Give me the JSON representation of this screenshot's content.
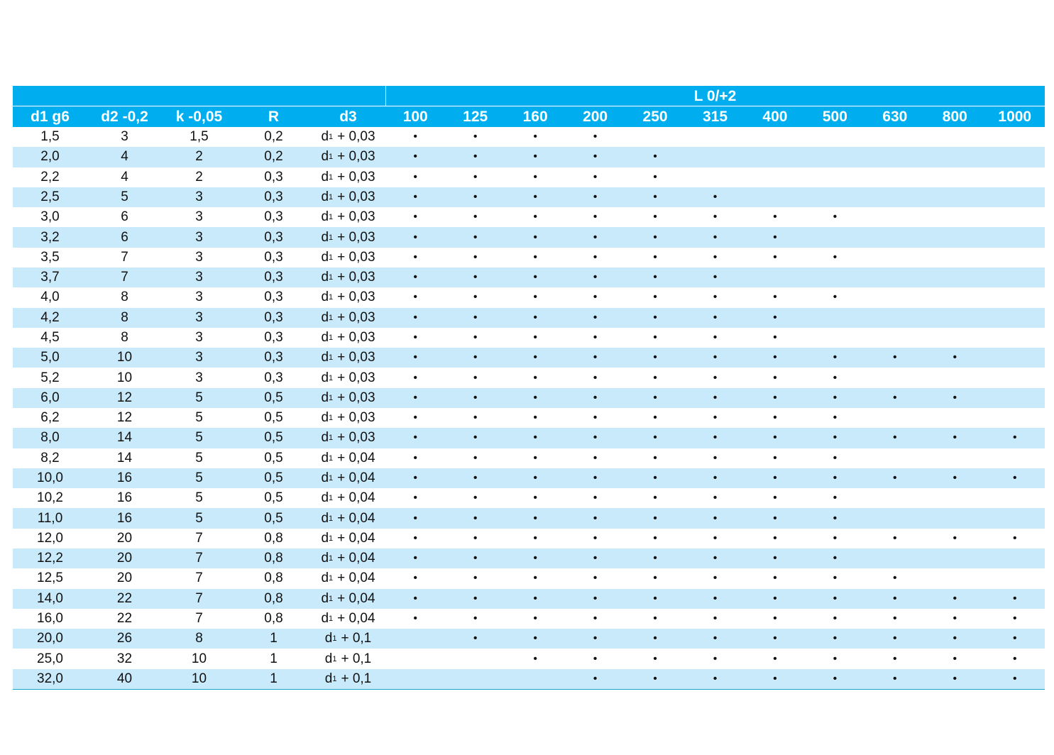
{
  "table": {
    "group_header": "L 0/+2",
    "columns": [
      "d1 g6",
      "d2 -0,2",
      "k -0,05",
      "R",
      "d3"
    ],
    "lengths": [
      "100",
      "125",
      "160",
      "200",
      "250",
      "315",
      "400",
      "500",
      "630",
      "800",
      "1000"
    ],
    "rows": [
      {
        "cells": [
          "1,5",
          "3",
          "1,5",
          "0,2"
        ],
        "d3": [
          "d",
          "1",
          "+ 0,03"
        ],
        "L": [
          "•",
          "•",
          "•",
          "•",
          null,
          null,
          null,
          null,
          null,
          null,
          null
        ]
      },
      {
        "cells": [
          "2,0",
          "4",
          "2",
          "0,2"
        ],
        "d3": [
          "d",
          "1",
          "+ 0,03"
        ],
        "L": [
          "•",
          "•",
          "•",
          "•",
          "•",
          null,
          null,
          null,
          null,
          null,
          null
        ]
      },
      {
        "cells": [
          "2,2",
          "4",
          "2",
          "0,3"
        ],
        "d3": [
          "d",
          "1",
          "+ 0,03"
        ],
        "L": [
          "•",
          "•",
          "•",
          "•",
          "•",
          null,
          null,
          null,
          null,
          null,
          null
        ]
      },
      {
        "cells": [
          "2,5",
          "5",
          "3",
          "0,3"
        ],
        "d3": [
          "d",
          "1",
          "+ 0,03"
        ],
        "L": [
          "•",
          "•",
          "•",
          "•",
          "•",
          "•",
          null,
          null,
          null,
          null,
          null
        ]
      },
      {
        "cells": [
          "3,0",
          "6",
          "3",
          "0,3"
        ],
        "d3": [
          "d",
          "1",
          "+ 0,03"
        ],
        "L": [
          "•",
          "•",
          "•",
          "•",
          "•",
          "•",
          "•",
          "•",
          null,
          null,
          null
        ]
      },
      {
        "cells": [
          "3,2",
          "6",
          "3",
          "0,3"
        ],
        "d3": [
          "d",
          "1",
          "+ 0,03"
        ],
        "L": [
          "•",
          "•",
          "•",
          "•",
          "•",
          "•",
          "•",
          null,
          null,
          null,
          null
        ]
      },
      {
        "cells": [
          "3,5",
          "7",
          "3",
          "0,3"
        ],
        "d3": [
          "d",
          "1",
          "+ 0,03"
        ],
        "L": [
          "•",
          "•",
          "•",
          "•",
          "•",
          "•",
          "•",
          "•",
          null,
          null,
          null
        ]
      },
      {
        "cells": [
          "3,7",
          "7",
          "3",
          "0,3"
        ],
        "d3": [
          "d",
          "1",
          "+ 0,03"
        ],
        "L": [
          "•",
          "•",
          "•",
          "•",
          "•",
          "•",
          null,
          null,
          null,
          null,
          null
        ]
      },
      {
        "cells": [
          "4,0",
          "8",
          "3",
          "0,3"
        ],
        "d3": [
          "d",
          "1",
          "+ 0,03"
        ],
        "L": [
          "•",
          "•",
          "•",
          "•",
          "•",
          "•",
          "•",
          "•",
          null,
          null,
          null
        ]
      },
      {
        "cells": [
          "4,2",
          "8",
          "3",
          "0,3"
        ],
        "d3": [
          "d",
          "1",
          "+ 0,03"
        ],
        "L": [
          "•",
          "•",
          "•",
          "•",
          "•",
          "•",
          "•",
          null,
          null,
          null,
          null
        ]
      },
      {
        "cells": [
          "4,5",
          "8",
          "3",
          "0,3"
        ],
        "d3": [
          "d",
          "1",
          "+ 0,03"
        ],
        "L": [
          "•",
          "•",
          "•",
          "•",
          "•",
          "•",
          "•",
          null,
          null,
          null,
          null
        ]
      },
      {
        "cells": [
          "5,0",
          "10",
          "3",
          "0,3"
        ],
        "d3": [
          "d",
          "1",
          "+ 0,03"
        ],
        "L": [
          "•",
          "•",
          "•",
          "•",
          "•",
          "•",
          "•",
          "•",
          "•",
          "•",
          null
        ]
      },
      {
        "cells": [
          "5,2",
          "10",
          "3",
          "0,3"
        ],
        "d3": [
          "d",
          "1",
          "+ 0,03"
        ],
        "L": [
          "•",
          "•",
          "•",
          "•",
          "•",
          "•",
          "•",
          "•",
          null,
          null,
          null
        ]
      },
      {
        "cells": [
          "6,0",
          "12",
          "5",
          "0,5"
        ],
        "d3": [
          "d",
          "1",
          "+ 0,03"
        ],
        "L": [
          "•",
          "•",
          "•",
          "•",
          "•",
          "•",
          "•",
          "•",
          "•",
          "•",
          null
        ]
      },
      {
        "cells": [
          "6,2",
          "12",
          "5",
          "0,5"
        ],
        "d3": [
          "d",
          "1",
          "+ 0,03"
        ],
        "L": [
          "•",
          "•",
          "•",
          "•",
          "•",
          "•",
          "•",
          "•",
          null,
          null,
          null
        ]
      },
      {
        "cells": [
          "8,0",
          "14",
          "5",
          "0,5"
        ],
        "d3": [
          "d",
          "1",
          "+ 0,03"
        ],
        "L": [
          "•",
          "•",
          "•",
          "•",
          "•",
          "•",
          "•",
          "•",
          "•",
          "•",
          "•"
        ]
      },
      {
        "cells": [
          "8,2",
          "14",
          "5",
          "0,5"
        ],
        "d3": [
          "d",
          "1",
          "+ 0,04"
        ],
        "L": [
          "•",
          "•",
          "•",
          "•",
          "•",
          "•",
          "•",
          "•",
          null,
          null,
          null
        ]
      },
      {
        "cells": [
          "10,0",
          "16",
          "5",
          "0,5"
        ],
        "d3": [
          "d",
          "1",
          "+ 0,04"
        ],
        "L": [
          "•",
          "•",
          "•",
          "•",
          "•",
          "•",
          "•",
          "•",
          "•",
          "•",
          "•"
        ]
      },
      {
        "cells": [
          "10,2",
          "16",
          "5",
          "0,5"
        ],
        "d3": [
          "d",
          "1",
          "+ 0,04"
        ],
        "L": [
          "•",
          "•",
          "•",
          "•",
          "•",
          "•",
          "•",
          "•",
          null,
          null,
          null
        ]
      },
      {
        "cells": [
          "11,0",
          "16",
          "5",
          "0,5"
        ],
        "d3": [
          "d",
          "1",
          "+ 0,04"
        ],
        "L": [
          "•",
          "•",
          "•",
          "•",
          "•",
          "•",
          "•",
          "•",
          null,
          null,
          null
        ]
      },
      {
        "cells": [
          "12,0",
          "20",
          "7",
          "0,8"
        ],
        "d3": [
          "d",
          "1",
          "+ 0,04"
        ],
        "L": [
          "•",
          "•",
          "•",
          "•",
          "•",
          "•",
          "•",
          "•",
          "•",
          "•",
          "•"
        ]
      },
      {
        "cells": [
          "12,2",
          "20",
          "7",
          "0,8"
        ],
        "d3": [
          "d",
          "1",
          "+ 0,04"
        ],
        "L": [
          "•",
          "•",
          "•",
          "•",
          "•",
          "•",
          "•",
          "•",
          null,
          null,
          null
        ]
      },
      {
        "cells": [
          "12,5",
          "20",
          "7",
          "0,8"
        ],
        "d3": [
          "d",
          "1",
          "+ 0,04"
        ],
        "L": [
          "•",
          "•",
          "•",
          "•",
          "•",
          "•",
          "•",
          "•",
          "•",
          null,
          null
        ]
      },
      {
        "cells": [
          "14,0",
          "22",
          "7",
          "0,8"
        ],
        "d3": [
          "d",
          "1",
          "+ 0,04"
        ],
        "L": [
          "•",
          "•",
          "•",
          "•",
          "•",
          "•",
          "•",
          "•",
          "•",
          "•",
          "•"
        ]
      },
      {
        "cells": [
          "16,0",
          "22",
          "7",
          "0,8"
        ],
        "d3": [
          "d",
          "1",
          "+ 0,04"
        ],
        "L": [
          "•",
          "•",
          "•",
          "•",
          "•",
          "•",
          "•",
          "•",
          "•",
          "•",
          "•"
        ]
      },
      {
        "cells": [
          "20,0",
          "26",
          "8",
          "1"
        ],
        "d3": [
          "d",
          "1",
          "+ 0,1"
        ],
        "L": [
          null,
          "•",
          "•",
          "•",
          "•",
          "•",
          "•",
          "•",
          "•",
          "•",
          "•"
        ]
      },
      {
        "cells": [
          "25,0",
          "32",
          "10",
          "1"
        ],
        "d3": [
          "d",
          "1",
          "+ 0,1"
        ],
        "L": [
          null,
          null,
          "•",
          "•",
          "•",
          "•",
          "•",
          "•",
          "•",
          "•",
          "•"
        ]
      },
      {
        "cells": [
          "32,0",
          "40",
          "10",
          "1"
        ],
        "d3": [
          "d",
          "1",
          "+ 0,1"
        ],
        "L": [
          null,
          null,
          null,
          "•",
          "•",
          "•",
          "•",
          "•",
          "•",
          "•",
          "•"
        ]
      }
    ]
  }
}
